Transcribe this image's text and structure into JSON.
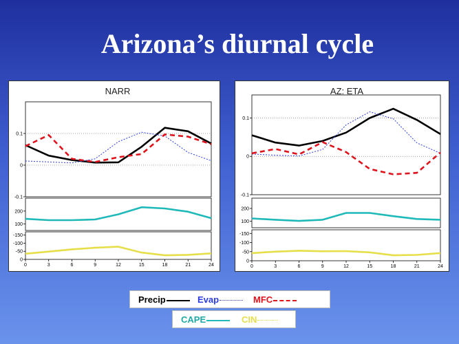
{
  "title": "Arizona’s diurnal cycle",
  "legend1": {
    "precip": "Precip",
    "evap": "Evap",
    "mfc": "MFC"
  },
  "legend2": {
    "cape": "CAPE",
    "cin": "CIN"
  },
  "colors": {
    "precip": "#000000",
    "evap": "#2b3de0",
    "mfc": "#e0121c",
    "cape": "#1fb9b9",
    "cin": "#e6df4a"
  },
  "chart_data": [
    {
      "type": "line",
      "title": "NARR",
      "x": [
        0,
        3,
        6,
        9,
        12,
        15,
        18,
        21,
        24
      ],
      "x_tick_labels": [
        "0",
        "3",
        "6",
        "9",
        "12",
        "15",
        "18",
        "21",
        "24"
      ],
      "top": {
        "ylim": [
          -0.1,
          0.2
        ],
        "y_tick_labels": [
          "0.1",
          "0",
          "-0.1"
        ],
        "series": [
          {
            "name": "Precip",
            "values": [
              0.063,
              0.03,
              0.016,
              0.008,
              0.009,
              0.058,
              0.118,
              0.107,
              0.068
            ]
          },
          {
            "name": "Evap",
            "values": [
              0.013,
              0.01,
              0.007,
              0.02,
              0.074,
              0.104,
              0.092,
              0.04,
              0.014
            ]
          },
          {
            "name": "MFC",
            "values": [
              0.06,
              0.095,
              0.02,
              0.01,
              0.025,
              0.035,
              0.097,
              0.09,
              0.066
            ]
          }
        ]
      },
      "cape": {
        "ylim": [
          50,
          300
        ],
        "y_tick_labels": [
          "200",
          "100"
        ],
        "series": [
          {
            "name": "CAPE",
            "values": [
              140,
              130,
              130,
              135,
              175,
              230,
              220,
              195,
              145
            ]
          }
        ]
      },
      "cin": {
        "ylim": [
          0,
          170
        ],
        "y_tick_labels": [
          "-150",
          "-100",
          "-50",
          "0"
        ],
        "series": [
          {
            "name": "CIN",
            "values": [
              35,
              48,
              62,
              72,
              78,
              42,
              25,
              28,
              37
            ]
          }
        ]
      }
    },
    {
      "type": "line",
      "title": "AZ: ETA",
      "x": [
        0,
        3,
        6,
        9,
        12,
        15,
        18,
        21,
        24
      ],
      "x_tick_labels": [
        "0",
        "3",
        "6",
        "9",
        "12",
        "15",
        "18",
        "21",
        "24"
      ],
      "top": {
        "ylim": [
          -0.1,
          0.16
        ],
        "y_tick_labels": [
          "0.1",
          "0",
          "-0.1"
        ],
        "series": [
          {
            "name": "Precip",
            "values": [
              0.055,
              0.036,
              0.028,
              0.04,
              0.062,
              0.1,
              0.124,
              0.095,
              0.058
            ]
          },
          {
            "name": "Evap",
            "values": [
              0.006,
              0.003,
              0.001,
              0.018,
              0.082,
              0.116,
              0.098,
              0.035,
              0.008
            ]
          },
          {
            "name": "MFC",
            "values": [
              0.008,
              0.019,
              0.005,
              0.037,
              0.011,
              -0.033,
              -0.047,
              -0.043,
              0.01
            ]
          }
        ]
      },
      "cape": {
        "ylim": [
          50,
          280
        ],
        "y_tick_labels": [
          "200",
          "100"
        ],
        "series": [
          {
            "name": "CAPE",
            "values": [
              122,
              112,
              103,
              112,
              165,
              165,
              140,
              118,
              112
            ]
          }
        ]
      },
      "cin": {
        "ylim": [
          0,
          170
        ],
        "y_tick_labels": [
          "-150",
          "-100",
          "-50",
          "0"
        ],
        "series": [
          {
            "name": "CIN",
            "values": [
              42,
              50,
              55,
              52,
              53,
              46,
              30,
              32,
              42
            ]
          }
        ]
      }
    }
  ]
}
